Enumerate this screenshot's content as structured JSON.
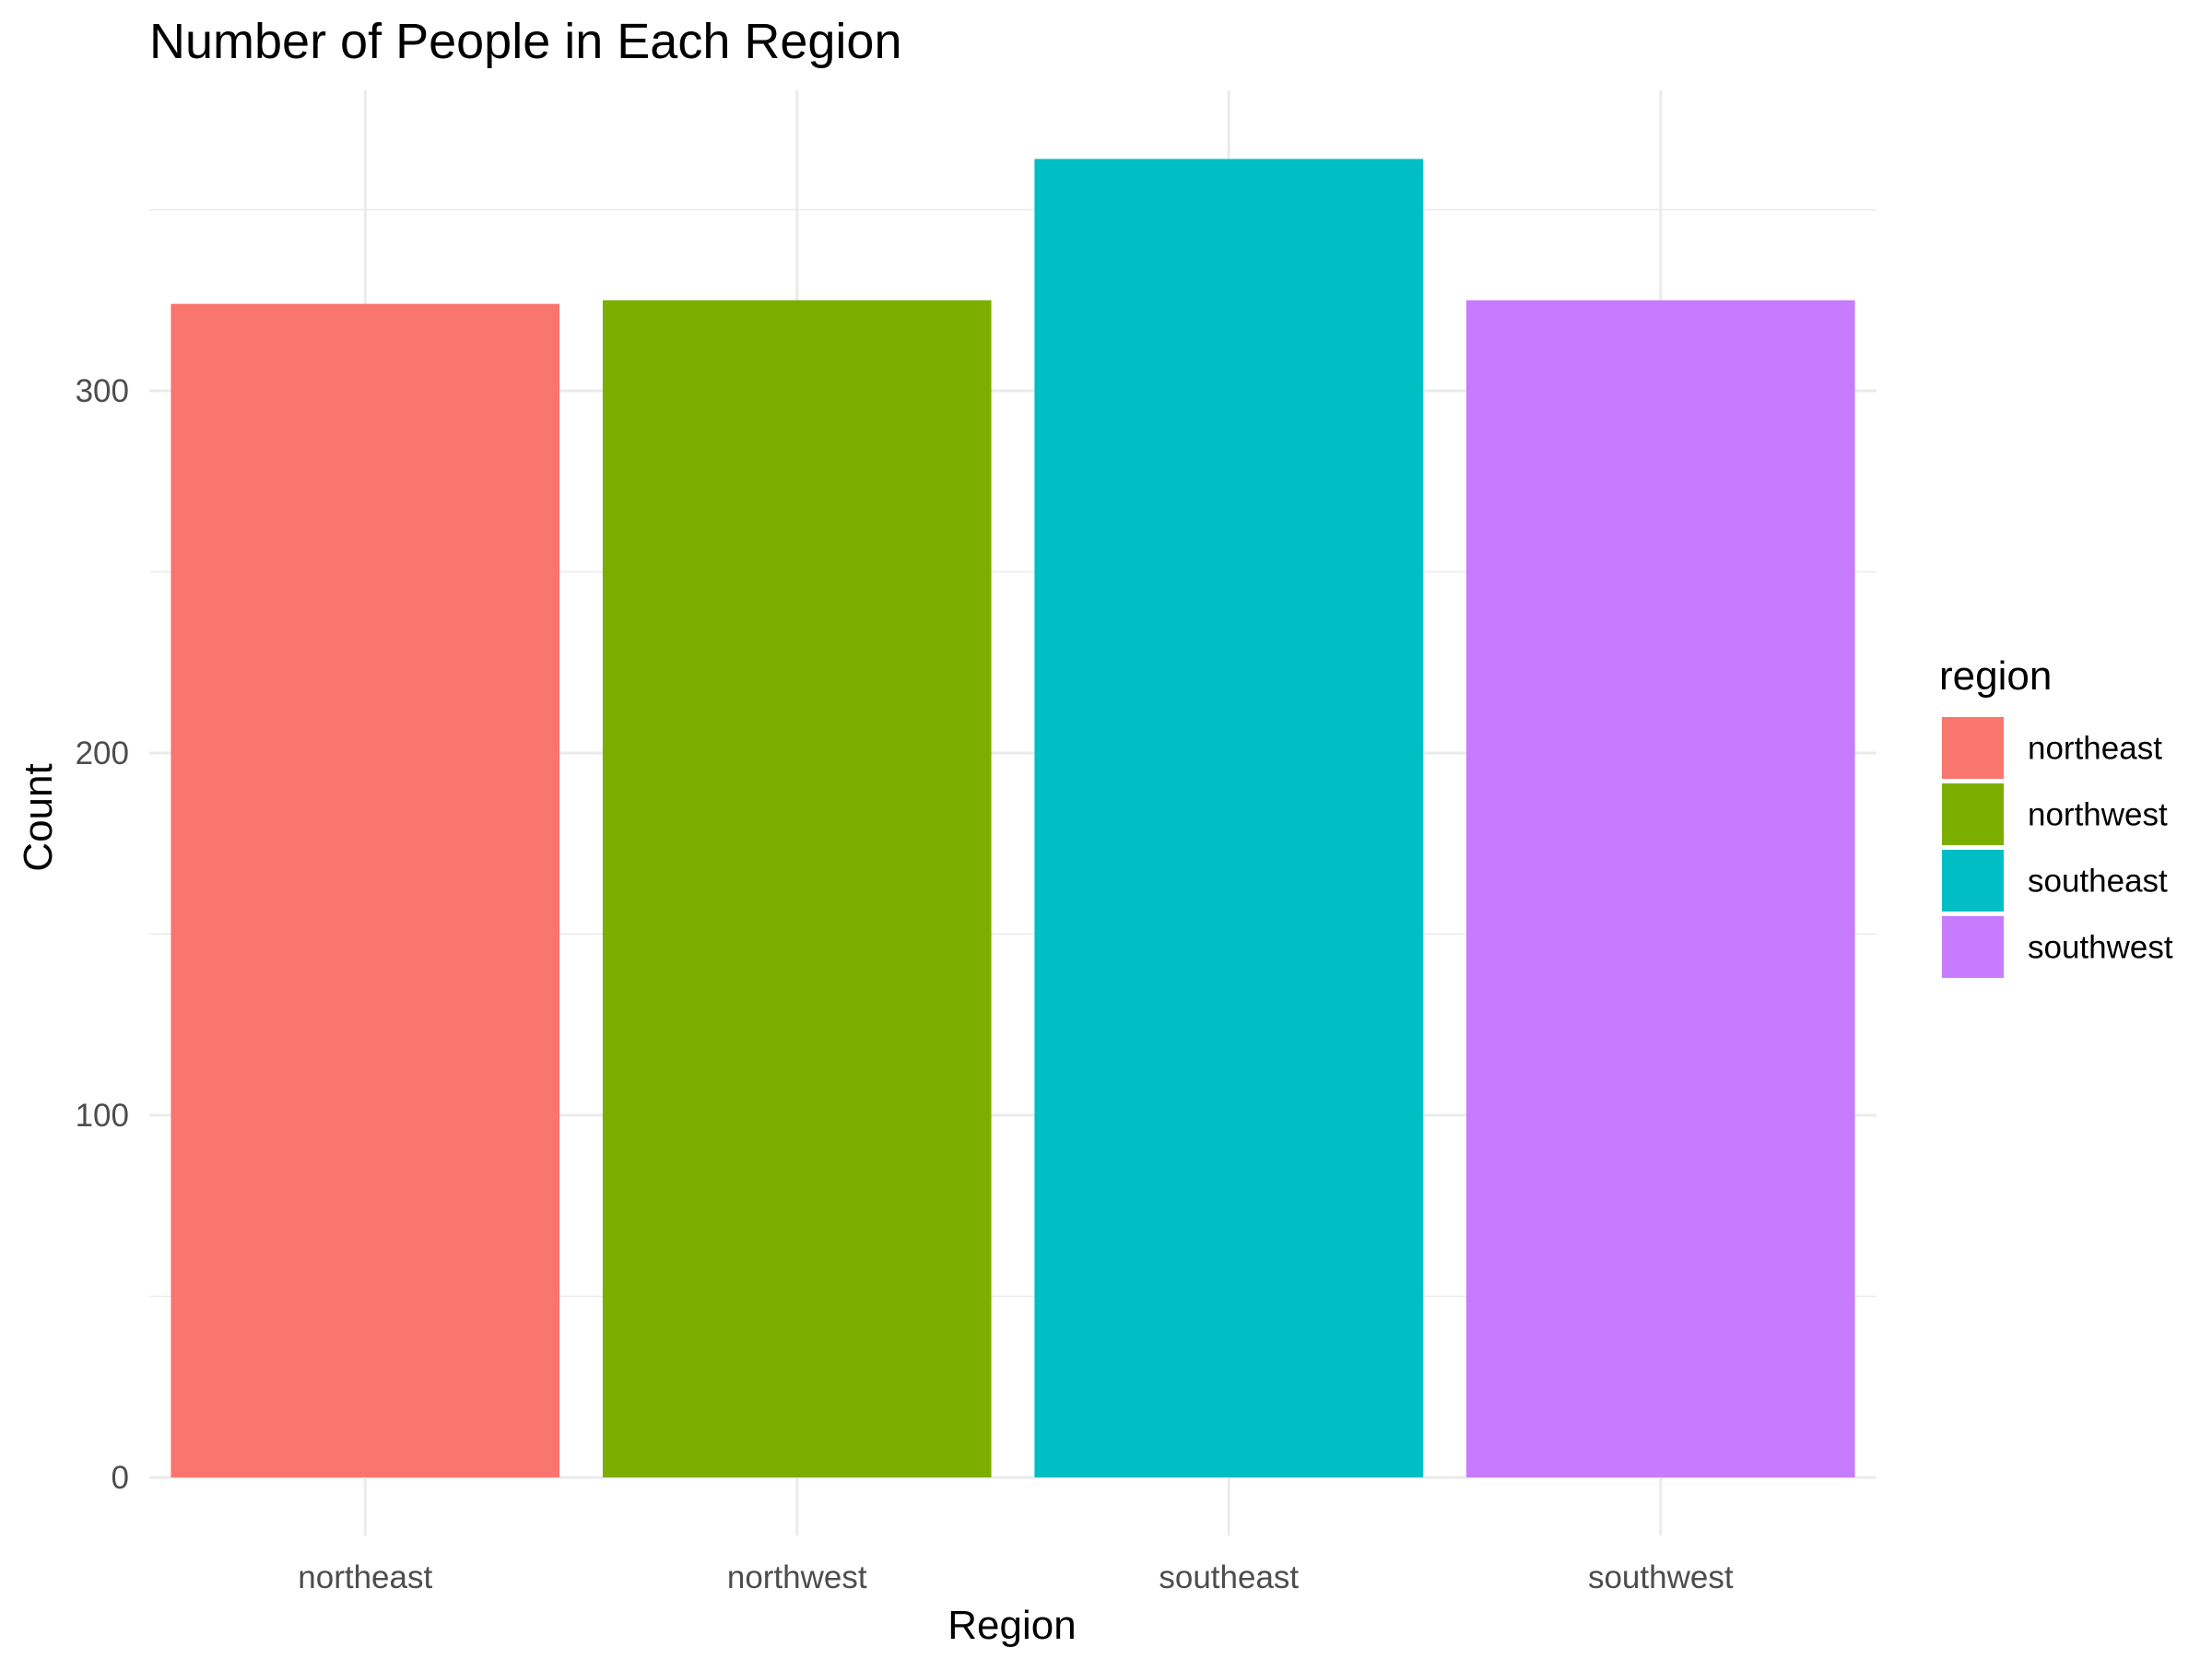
{
  "chart_data": {
    "type": "bar",
    "title": "Number of People in Each Region",
    "xlabel": "Region",
    "ylabel": "Count",
    "categories": [
      "northeast",
      "northwest",
      "southeast",
      "southwest"
    ],
    "values": [
      324,
      325,
      364,
      325
    ],
    "ylim": [
      0,
      364
    ],
    "yticks": [
      0,
      100,
      200,
      300
    ],
    "grid": true,
    "legend": {
      "title": "region",
      "placement": "right",
      "entries": [
        "northeast",
        "northwest",
        "southeast",
        "southwest"
      ]
    },
    "colors": [
      "#F8766D",
      "#7CAE00",
      "#00BFC4",
      "#C77CFF"
    ]
  }
}
